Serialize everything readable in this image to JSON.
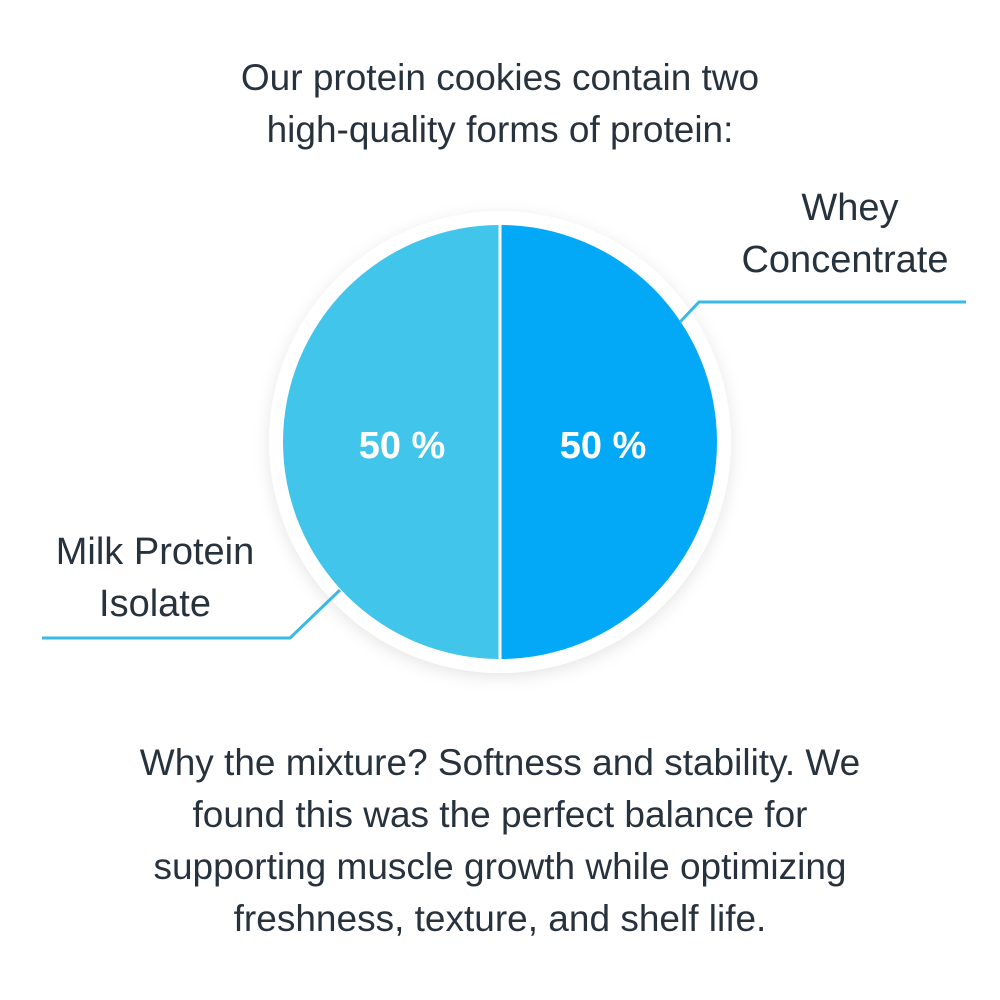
{
  "title_lines": [
    "Our protein cookies contain two",
    "high-quality forms of protein:"
  ],
  "chart_data": {
    "type": "pie",
    "slices": [
      {
        "label": "Whey Concentrate",
        "label_lines": [
          "Whey",
          "Concentrate"
        ],
        "value": 50,
        "data_label": "50 %",
        "color": "#03A9F6"
      },
      {
        "label": "Milk Protein Isolate",
        "label_lines": [
          "Milk Protein",
          "Isolate"
        ],
        "value": 50,
        "data_label": "50 %",
        "color": "#41C5EA"
      }
    ],
    "leader_color": "#3BB8E6"
  },
  "bottom_lines": [
    "Why the mixture? Softness and stability. We",
    "found this was the perfect balance for",
    "supporting muscle growth while optimizing",
    "freshness, texture, and shelf life."
  ]
}
